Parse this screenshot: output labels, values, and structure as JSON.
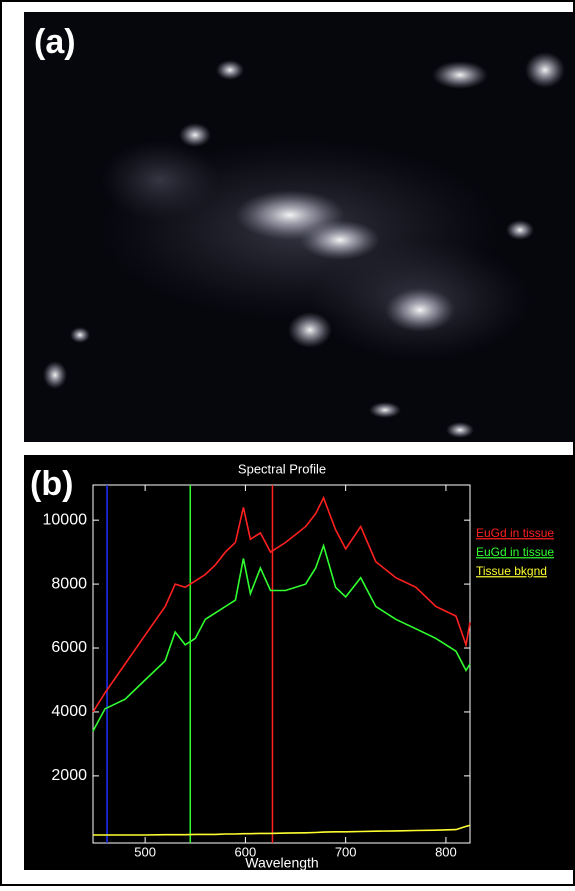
{
  "panel_a": {
    "label": "(a)"
  },
  "chart_data": {
    "type": "line",
    "panel_label": "(b)",
    "title": "Spectral Profile",
    "x_label": "Wavelength",
    "x": [
      448,
      460,
      480,
      500,
      520,
      530,
      540,
      550,
      560,
      570,
      580,
      590,
      598,
      605,
      615,
      625,
      640,
      660,
      670,
      678,
      690,
      700,
      715,
      730,
      750,
      770,
      790,
      810,
      820,
      824
    ],
    "series": [
      {
        "name": "EuGd in tissue",
        "color": "#ff2020",
        "values": [
          4000,
          4600,
          5500,
          6400,
          7300,
          8000,
          7900,
          8100,
          8300,
          8600,
          9000,
          9300,
          10400,
          9400,
          9600,
          9000,
          9300,
          9800,
          10200,
          10700,
          9700,
          9100,
          9800,
          8700,
          8200,
          7900,
          7300,
          7000,
          6100,
          6800
        ]
      },
      {
        "name": "EuGd in tissue",
        "color": "#30ff30",
        "values": [
          3400,
          4100,
          4400,
          5000,
          5600,
          6500,
          6100,
          6300,
          6900,
          7100,
          7300,
          7500,
          8800,
          7700,
          8500,
          7800,
          7800,
          8000,
          8500,
          9200,
          7900,
          7600,
          8200,
          7300,
          6900,
          6600,
          6300,
          5900,
          5300,
          5500
        ]
      },
      {
        "name": "Tissue bkgnd",
        "color": "#ffff30",
        "values": [
          150,
          150,
          150,
          150,
          160,
          160,
          160,
          170,
          170,
          170,
          180,
          180,
          190,
          190,
          200,
          200,
          210,
          220,
          230,
          240,
          250,
          250,
          260,
          270,
          280,
          290,
          300,
          320,
          420,
          450
        ]
      }
    ],
    "vertical_lines": [
      {
        "x": 462,
        "color": "#2030ff"
      },
      {
        "x": 545,
        "color": "#30ff30"
      },
      {
        "x": 627,
        "color": "#ff2020"
      }
    ],
    "xlim": [
      448,
      824
    ],
    "ylim": [
      -100,
      11100
    ],
    "xticks": [
      500,
      600,
      700,
      800
    ],
    "yticks": [
      2000,
      4000,
      6000,
      8000,
      10000
    ]
  }
}
